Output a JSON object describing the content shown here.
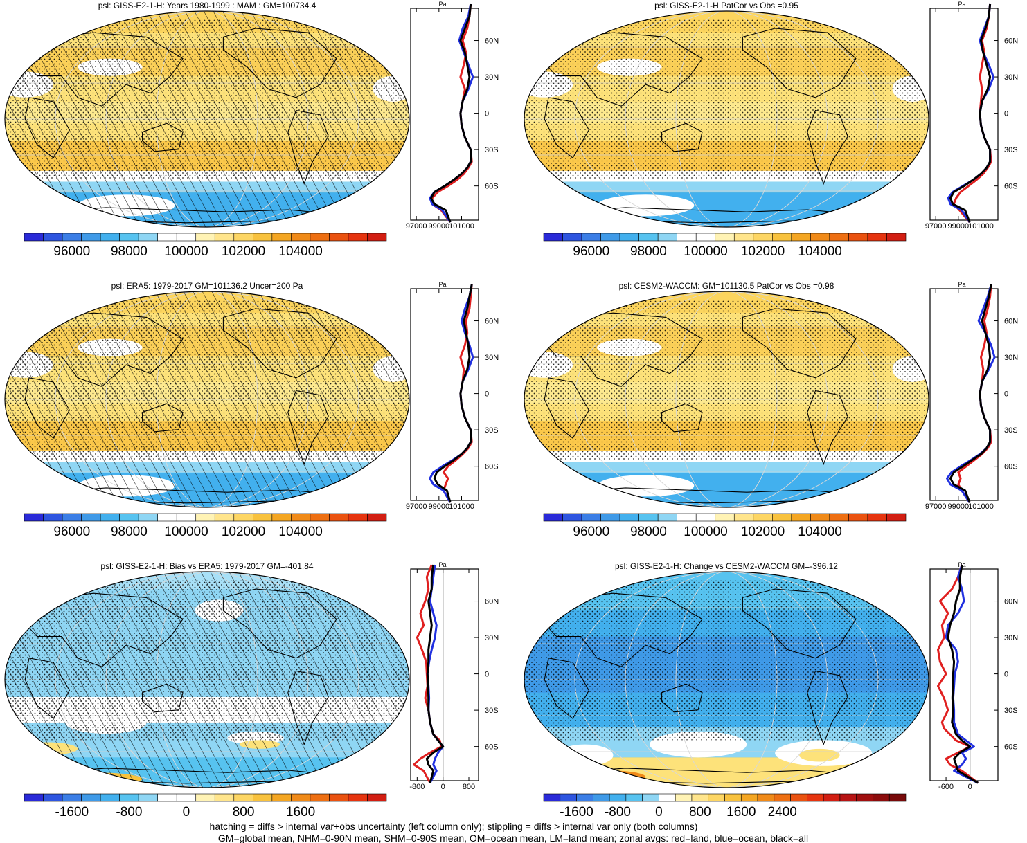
{
  "palette": {
    "abs": [
      "#2a2ad8",
      "#2e55e0",
      "#3b7ee6",
      "#3f9ae8",
      "#42b0ee",
      "#57c3f0",
      "#8fd6f4",
      "#ffffff",
      "#ffffff",
      "#fff3b5",
      "#ffe58c",
      "#fdd664",
      "#f8c23e",
      "#f4a622",
      "#f08a18",
      "#ee6f12",
      "#ea5210",
      "#e6340f",
      "#d21e12"
    ],
    "bias": [
      "#2a2ad8",
      "#2e55e0",
      "#3b7ee6",
      "#3f9ae8",
      "#42b0ee",
      "#57c3f0",
      "#8fd6f4",
      "#ffffff",
      "#ffffff",
      "#fff3b5",
      "#ffe58c",
      "#fdd664",
      "#f8c23e",
      "#f4a622",
      "#f08a18",
      "#ee6f12",
      "#ea5210",
      "#e6340f",
      "#d21e12"
    ],
    "change": [
      "#2a2ad8",
      "#2e55e0",
      "#3b7ee6",
      "#3f9ae8",
      "#42b0ee",
      "#57c3f0",
      "#8fd6f4",
      "#ffffff",
      "#fff3b5",
      "#ffe58c",
      "#fdd664",
      "#f8c23e",
      "#f4a622",
      "#f08a18",
      "#ee6f12",
      "#ea5210",
      "#e6340f",
      "#d21e12",
      "#b71414",
      "#a00f0f",
      "#8c0c0c",
      "#780a0a"
    ],
    "land": "#e02020",
    "ocean": "#2030e0",
    "all": "#000000"
  },
  "chart_data": [
    {
      "type": "heatmap",
      "title": "psl: GISS-E2-1-H: Years 1980-1999 : MAM : GM=100734.4",
      "field": "abs",
      "hatching": true,
      "stipple": true,
      "colorbar": {
        "ticks": [
          "96000",
          "98000",
          "100000",
          "102000",
          "104000"
        ]
      },
      "zonal": {
        "unit": "Pa",
        "xticks": [
          "97000",
          "99000",
          "101000"
        ],
        "xlim": [
          96500,
          102500
        ],
        "lat_ticks": [
          "60N",
          "30N",
          "0",
          "30S",
          "60S"
        ],
        "lat": [
          -90,
          -80,
          -75,
          -70,
          -65,
          -60,
          -55,
          -50,
          -45,
          -40,
          -30,
          -20,
          -10,
          0,
          10,
          20,
          30,
          40,
          50,
          60,
          70,
          80,
          90
        ],
        "land": [
          100000,
          99200,
          98400,
          98400,
          98900,
          99800,
          100600,
          101200,
          101600,
          101900,
          101800,
          101300,
          101000,
          100900,
          101100,
          101300,
          100900,
          101200,
          101400,
          101100,
          101500,
          101700,
          101800
        ],
        "ocean": [
          100000,
          99300,
          98400,
          98200,
          98600,
          99500,
          100300,
          101000,
          101500,
          101800,
          101800,
          101300,
          101000,
          100900,
          101100,
          101600,
          102000,
          101600,
          101200,
          100800,
          101100,
          101600,
          101800
        ],
        "all": [
          100000,
          99600,
          98600,
          98300,
          98600,
          99500,
          100300,
          101000,
          101500,
          101800,
          101800,
          101300,
          101000,
          100900,
          101100,
          101500,
          101700,
          101500,
          101300,
          100900,
          101300,
          101700,
          101800
        ]
      }
    },
    {
      "type": "heatmap",
      "title": "psl: GISS-E2-1-H PatCor vs Obs =0.95",
      "field": "abs",
      "hatching": false,
      "stipple": true,
      "colorbar": {
        "ticks": [
          "96000",
          "98000",
          "100000",
          "102000",
          "104000"
        ]
      },
      "zonal": {
        "unit": "Pa",
        "xticks": [
          "97000",
          "99000",
          "101000"
        ],
        "xlim": [
          96500,
          102500
        ],
        "lat_ticks": [
          "60N",
          "30N",
          "0",
          "30S",
          "60S"
        ],
        "lat": [
          -90,
          -80,
          -75,
          -70,
          -65,
          -60,
          -55,
          -50,
          -45,
          -40,
          -30,
          -20,
          -10,
          0,
          10,
          20,
          30,
          40,
          50,
          60,
          70,
          80,
          90
        ],
        "land": [
          100000,
          99100,
          98600,
          98800,
          99200,
          99900,
          100600,
          101200,
          101600,
          101900,
          101800,
          101300,
          101000,
          100900,
          101000,
          101100,
          100900,
          101100,
          101300,
          101100,
          101500,
          101700,
          101800
        ],
        "ocean": [
          100000,
          99300,
          98300,
          98100,
          98500,
          99400,
          100300,
          101000,
          101500,
          101800,
          101800,
          101300,
          101000,
          100900,
          101100,
          101700,
          102100,
          101700,
          101200,
          100900,
          101300,
          101700,
          101800
        ],
        "all": [
          100000,
          99600,
          98500,
          98300,
          98600,
          99500,
          100300,
          101000,
          101500,
          101800,
          101800,
          101300,
          101000,
          100900,
          101100,
          101600,
          101800,
          101500,
          101200,
          101000,
          101400,
          101700,
          101800
        ]
      }
    },
    {
      "type": "heatmap",
      "title": "psl: ERA5: 1979-2017 GM=101136.2 Uncer=200 Pa",
      "field": "abs",
      "hatching": true,
      "stipple": true,
      "colorbar": {
        "ticks": [
          "96000",
          "98000",
          "100000",
          "102000",
          "104000"
        ]
      },
      "zonal": {
        "unit": "Pa",
        "xticks": [
          "97000",
          "99000",
          "101000"
        ],
        "xlim": [
          96500,
          102500
        ],
        "lat_ticks": [
          "60N",
          "30N",
          "0",
          "30S",
          "60S"
        ],
        "lat": [
          -90,
          -80,
          -75,
          -70,
          -65,
          -60,
          -55,
          -50,
          -45,
          -40,
          -30,
          -20,
          -10,
          0,
          10,
          20,
          30,
          40,
          50,
          60,
          70,
          80,
          90
        ],
        "land": [
          100000,
          99400,
          99600,
          99800,
          99400,
          99800,
          100500,
          101100,
          101600,
          101900,
          101800,
          101300,
          101000,
          100900,
          101100,
          101200,
          100900,
          101300,
          101500,
          101400,
          101700,
          101800,
          101900
        ],
        "ocean": [
          100000,
          99400,
          98500,
          98200,
          98500,
          99300,
          100200,
          101000,
          101500,
          101800,
          101800,
          101300,
          101000,
          100900,
          101100,
          101600,
          102000,
          101700,
          101300,
          101000,
          101300,
          101700,
          101900
        ],
        "all": [
          100000,
          99700,
          98900,
          98600,
          98800,
          99500,
          100300,
          101000,
          101500,
          101800,
          101800,
          101300,
          101000,
          100900,
          101100,
          101500,
          101700,
          101600,
          101400,
          101200,
          101500,
          101700,
          101900
        ]
      }
    },
    {
      "type": "heatmap",
      "title": "psl: CESM2-WACCM: GM=101130.5 PatCor vs Obs =0.98",
      "field": "abs",
      "hatching": false,
      "stipple": true,
      "colorbar": {
        "ticks": [
          "96000",
          "98000",
          "100000",
          "102000",
          "104000"
        ]
      },
      "zonal": {
        "unit": "Pa",
        "xticks": [
          "97000",
          "99000",
          "101000"
        ],
        "xlim": [
          96500,
          102500
        ],
        "lat_ticks": [
          "60N",
          "30N",
          "0",
          "30S",
          "60S"
        ],
        "lat": [
          -90,
          -80,
          -75,
          -70,
          -65,
          -60,
          -55,
          -50,
          -45,
          -40,
          -30,
          -20,
          -10,
          0,
          10,
          20,
          30,
          40,
          50,
          60,
          70,
          80,
          90
        ],
        "land": [
          100000,
          99300,
          99000,
          99200,
          99000,
          99700,
          100400,
          101100,
          101600,
          101900,
          101800,
          101300,
          101000,
          100900,
          101100,
          101200,
          101000,
          101300,
          101500,
          101300,
          101600,
          101800,
          101900
        ],
        "ocean": [
          100000,
          99300,
          98300,
          98000,
          98400,
          99200,
          100100,
          100900,
          101500,
          101800,
          101800,
          101300,
          101000,
          100900,
          101100,
          101700,
          102200,
          101900,
          101400,
          100800,
          101200,
          101600,
          101900
        ],
        "all": [
          100000,
          99600,
          98600,
          98300,
          98600,
          99400,
          100200,
          101000,
          101500,
          101800,
          101800,
          101300,
          101000,
          100900,
          101100,
          101600,
          101800,
          101700,
          101400,
          101100,
          101400,
          101700,
          101900
        ]
      }
    },
    {
      "type": "heatmap",
      "title": "psl: GISS-E2-1-H: Bias vs ERA5: 1979-2017 GM=-401.84",
      "field": "bias",
      "hatching": true,
      "stipple": true,
      "colorbar": {
        "ticks": [
          "-1600",
          "-800",
          "0",
          "800",
          "1600"
        ]
      },
      "zonal": {
        "unit": "Pa",
        "xticks": [
          "-800",
          "0",
          "800"
        ],
        "xlim": [
          -1000,
          1100
        ],
        "lat_ticks": [
          "60N",
          "30N",
          "0",
          "30S",
          "60S"
        ],
        "lat": [
          -90,
          -80,
          -75,
          -70,
          -65,
          -60,
          -55,
          -50,
          -45,
          -40,
          -30,
          -20,
          -10,
          0,
          10,
          20,
          30,
          40,
          50,
          60,
          70,
          80,
          90
        ],
        "land": [
          -400,
          -600,
          -900,
          -700,
          -400,
          -50,
          -100,
          -300,
          -350,
          -400,
          -450,
          -550,
          -480,
          -500,
          -520,
          -650,
          -800,
          -600,
          -700,
          -550,
          -450,
          -500,
          -350
        ],
        "ocean": [
          -400,
          -200,
          -300,
          -250,
          -150,
          0,
          -150,
          -300,
          -350,
          -400,
          -450,
          -430,
          -450,
          -480,
          -430,
          -350,
          -250,
          -200,
          -300,
          -400,
          -350,
          -300,
          -250
        ],
        "all": [
          -400,
          -300,
          -450,
          -500,
          -300,
          0,
          -150,
          -300,
          -350,
          -400,
          -450,
          -450,
          -460,
          -480,
          -450,
          -450,
          -400,
          -350,
          -400,
          -450,
          -350,
          -350,
          -300
        ]
      }
    },
    {
      "type": "heatmap",
      "title": "psl: GISS-E2-1-H: Change vs CESM2-WACCM GM=-396.12",
      "field": "change",
      "hatching": false,
      "stipple": true,
      "colorbar": {
        "ticks": [
          "-1600",
          "-800",
          "0",
          "800",
          "1600",
          "2400"
        ]
      },
      "zonal": {
        "unit": "Pa",
        "xticks": [
          "-600",
          "0"
        ],
        "xlim": [
          -1000,
          700
        ],
        "lat_ticks": [
          "60N",
          "30N",
          "0",
          "30S",
          "60S"
        ],
        "lat": [
          -90,
          -80,
          -75,
          -70,
          -65,
          -60,
          -55,
          -50,
          -45,
          -40,
          -30,
          -20,
          -10,
          0,
          10,
          20,
          30,
          40,
          50,
          60,
          70,
          80,
          90
        ],
        "land": [
          200,
          -200,
          -500,
          -600,
          -300,
          0,
          -350,
          -500,
          -650,
          -700,
          -550,
          -650,
          -800,
          -600,
          -750,
          -800,
          -650,
          -700,
          -550,
          -750,
          -450,
          -300,
          -200
        ],
        "ocean": [
          200,
          -400,
          -200,
          -100,
          -200,
          100,
          -100,
          -300,
          -350,
          -400,
          -400,
          -420,
          -400,
          -380,
          -300,
          -350,
          -600,
          -550,
          -300,
          -150,
          -200,
          -300,
          -200
        ],
        "all": [
          200,
          -300,
          -350,
          -400,
          -250,
          0,
          -200,
          -350,
          -400,
          -450,
          -420,
          -440,
          -430,
          -420,
          -400,
          -450,
          -550,
          -500,
          -400,
          -350,
          -250,
          -250,
          -200
        ]
      }
    }
  ],
  "footer": {
    "line1": "hatching = diffs > internal var+obs uncertainty (left column only); stippling = diffs > internal var only (both columns)",
    "line2": "GM=global mean, NHM=0-90N mean, SHM=0-90S mean, OM=ocean mean, LM=land mean; zonal avgs: red=land, blue=ocean, black=all"
  }
}
